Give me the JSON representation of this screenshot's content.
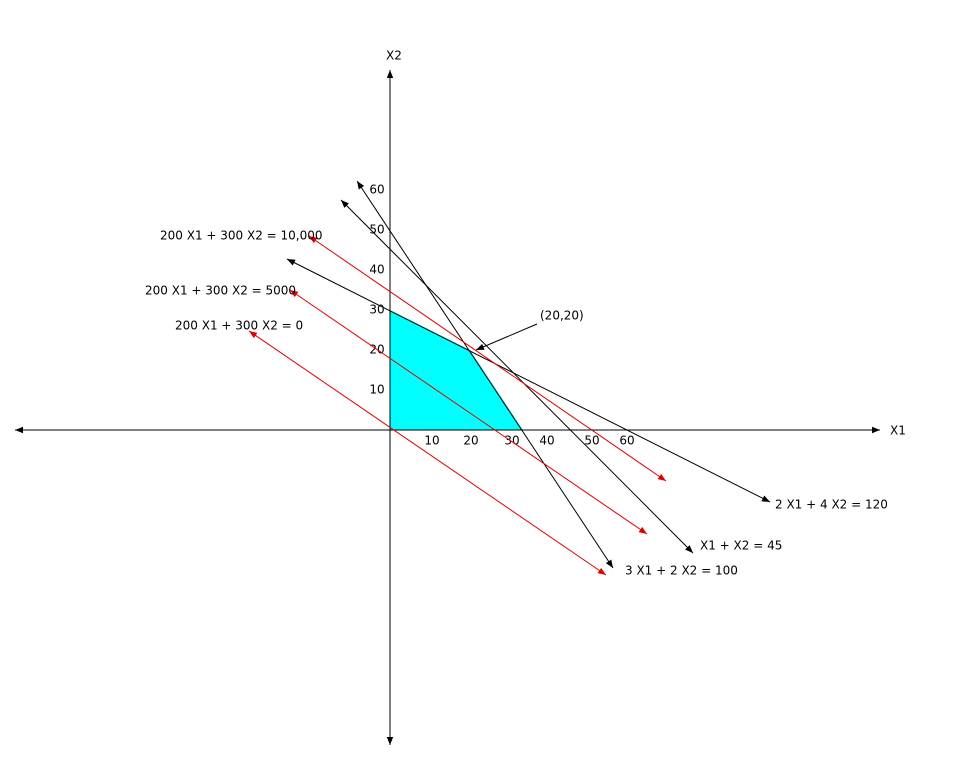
{
  "axes": {
    "x_label": "X1",
    "y_label": "X2",
    "x_ticks": [
      "10",
      "20",
      "30",
      "40",
      "50",
      "60"
    ],
    "y_ticks": [
      "10",
      "20",
      "30",
      "40",
      "50",
      "60"
    ]
  },
  "constraints": [
    "3 X1 + 2 X2 = 100",
    "X1 + X2 = 45",
    "2 X1 + 4 X2 = 120"
  ],
  "objective_lines": [
    "200 X1 + 300 X2 = 10,000",
    "200 X1 + 300 X2 = 5000",
    "200 X1 + 300 X2 = 0"
  ],
  "optimum_label": "(20,20)"
}
